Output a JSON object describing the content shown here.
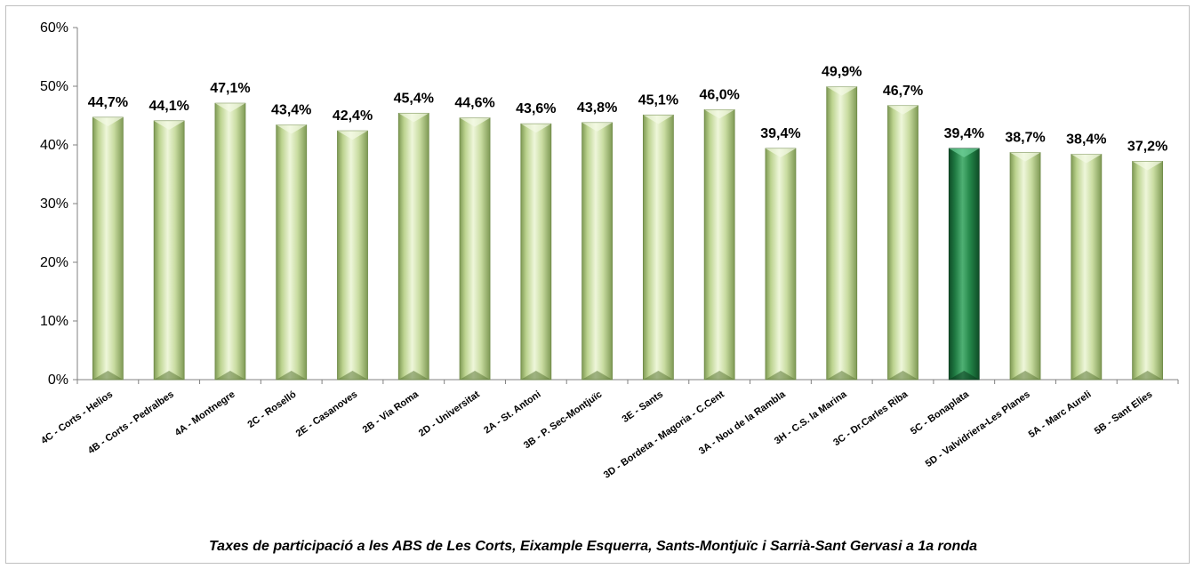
{
  "chart_data": {
    "type": "bar",
    "title": "Taxes de participació a les ABS de Les Corts, Eixample Esquerra, Sants-Montjuïc i Sarrià-Sant Gervasi a 1a ronda",
    "xlabel": "",
    "ylabel": "",
    "ylim": [
      0,
      60
    ],
    "yticks": [
      0,
      10,
      20,
      30,
      40,
      50,
      60
    ],
    "ytick_labels": [
      "0%",
      "10%",
      "20%",
      "30%",
      "40%",
      "50%",
      "60%"
    ],
    "grid": false,
    "legend": "none",
    "categories": [
      "4C - Corts - Helios",
      "4B - Corts - Pedralbes",
      "4A - Montnegre",
      "2C - Roselló",
      "2E - Casanoves",
      "2B - Via Roma",
      "2D - Universitat",
      "2A - St. Antoni",
      "3B - P. Sec-Montjuïc",
      "3E - Sants",
      "3D - Bordeta - Magoria - C.Cent",
      "3A - Nou de la Rambla",
      "3H - C.S. la Marina",
      "3C - Dr.Carles Riba",
      "5C - Bonaplata",
      "5D - Valvidriera-Les Planes",
      "5A - Marc Aureli",
      "5B - Sant Elies"
    ],
    "values": [
      44.7,
      44.1,
      47.1,
      43.4,
      42.4,
      45.4,
      44.6,
      43.6,
      43.8,
      45.1,
      46.0,
      39.4,
      49.9,
      46.7,
      39.4,
      38.7,
      38.4,
      37.2
    ],
    "value_labels": [
      "44,7%",
      "44,1%",
      "47,1%",
      "43,4%",
      "42,4%",
      "45,4%",
      "44,6%",
      "43,6%",
      "43,8%",
      "45,1%",
      "46,0%",
      "39,4%",
      "49,9%",
      "46,7%",
      "39,4%",
      "38,7%",
      "38,4%",
      "37,2%"
    ],
    "highlight_index": 14,
    "colors": {
      "bar": "#c8dba0",
      "bar_dark": "#8fa86a",
      "bar_light": "#eaf3d4",
      "highlight": "#2e8b57",
      "highlight_dark": "#14592f",
      "highlight_light": "#5cbf7f",
      "axis": "#808080"
    }
  }
}
